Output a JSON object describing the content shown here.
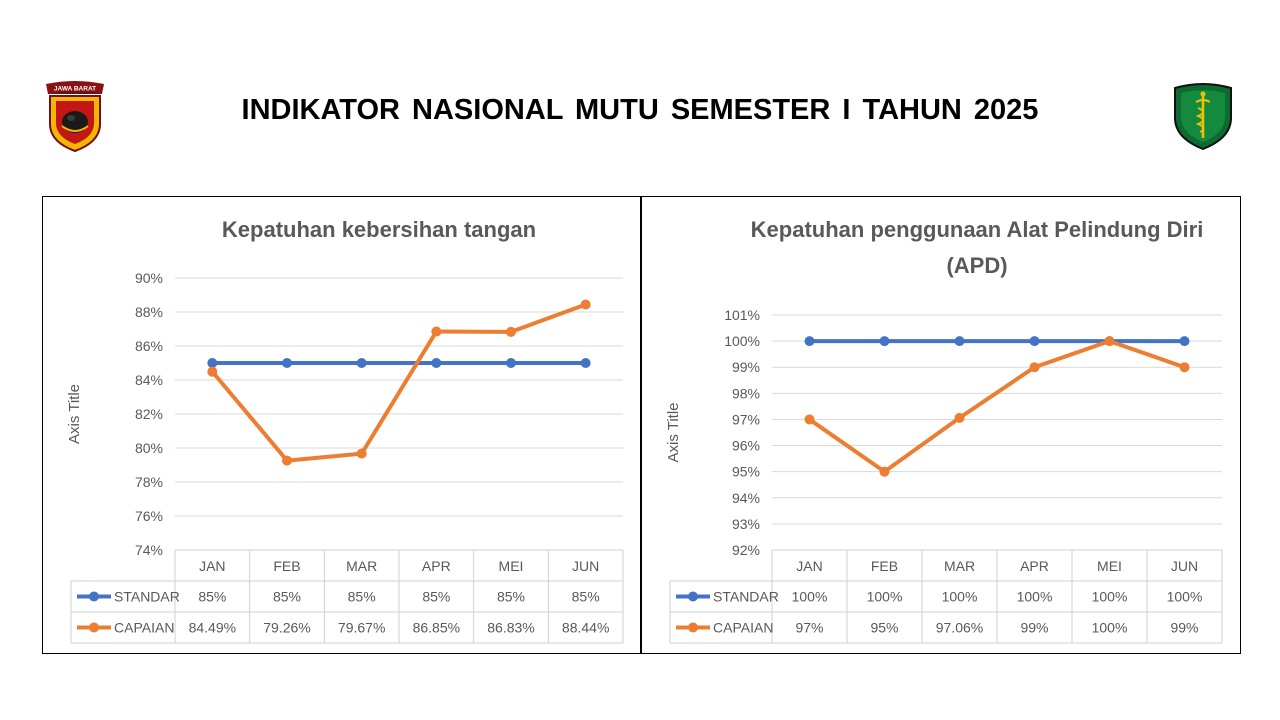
{
  "header": {
    "title": "INDIKATOR NASIONAL MUTU SEMESTER I TAHUN 2025",
    "logo_left_text": "JAWA BARAT"
  },
  "chart_data": [
    {
      "type": "line",
      "title": "Kepatuhan kebersihan tangan",
      "ylabel": "Axis Title",
      "xlabel": "",
      "categories": [
        "JAN",
        "FEB",
        "MAR",
        "APR",
        "MEI",
        "JUN"
      ],
      "ylim": [
        0.74,
        0.9
      ],
      "yticks": [
        "74%",
        "76%",
        "78%",
        "80%",
        "82%",
        "84%",
        "86%",
        "88%",
        "90%"
      ],
      "grid": true,
      "legend": "data-table",
      "series": [
        {
          "name": "STANDAR",
          "color": "#4472C4",
          "values": [
            0.85,
            0.85,
            0.85,
            0.85,
            0.85,
            0.85
          ],
          "labels": [
            "85%",
            "85%",
            "85%",
            "85%",
            "85%",
            "85%"
          ]
        },
        {
          "name": "CAPAIAN",
          "color": "#ED7D31",
          "values": [
            0.8449,
            0.7926,
            0.7967,
            0.8685,
            0.8683,
            0.8844
          ],
          "labels": [
            "84.49%",
            "79.26%",
            "79.67%",
            "86.85%",
            "86.83%",
            "88.44%"
          ]
        }
      ]
    },
    {
      "type": "line",
      "title": "Kepatuhan penggunaan Alat Pelindung Diri (APD)",
      "title_lines": [
        "Kepatuhan penggunaan Alat Pelindung Diri",
        "(APD)"
      ],
      "ylabel": "Axis Title",
      "xlabel": "",
      "categories": [
        "JAN",
        "FEB",
        "MAR",
        "APR",
        "MEI",
        "JUN"
      ],
      "ylim": [
        0.92,
        1.01
      ],
      "yticks": [
        "92%",
        "93%",
        "94%",
        "95%",
        "96%",
        "97%",
        "98%",
        "99%",
        "100%",
        "101%"
      ],
      "grid": true,
      "legend": "data-table",
      "series": [
        {
          "name": "STANDAR",
          "color": "#4472C4",
          "values": [
            1.0,
            1.0,
            1.0,
            1.0,
            1.0,
            1.0
          ],
          "labels": [
            "100%",
            "100%",
            "100%",
            "100%",
            "100%",
            "100%"
          ]
        },
        {
          "name": "CAPAIAN",
          "color": "#ED7D31",
          "values": [
            0.97,
            0.95,
            0.9706,
            0.99,
            1.0,
            0.99
          ],
          "labels": [
            "97%",
            "95%",
            "97.06%",
            "99%",
            "100%",
            "99%"
          ]
        }
      ]
    }
  ]
}
